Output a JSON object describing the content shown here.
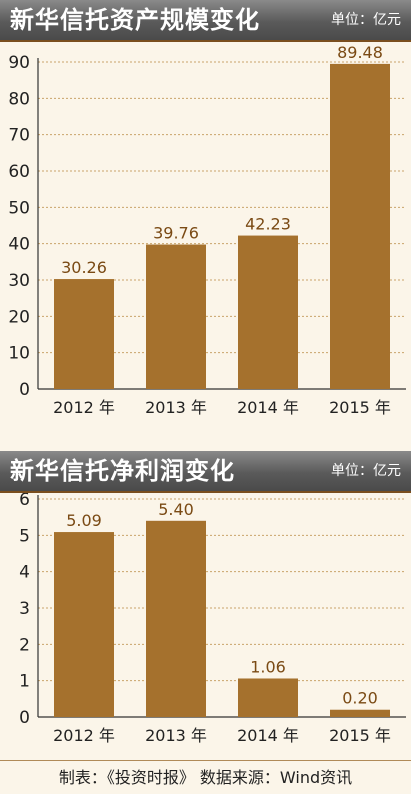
{
  "charts": [
    {
      "title": "新华信托资产规模变化",
      "unit": "单位：亿元"
    },
    {
      "title": "新华信托净利润变化",
      "unit": "单位：亿元"
    }
  ],
  "footer": "制表：《投资时报》  数据来源：Wind资讯",
  "colors": {
    "bar": "#a5712d",
    "label": "#7a4a14",
    "grid": "#c9a46a",
    "banner": "#5e5e5e"
  },
  "chart_data": [
    {
      "type": "bar",
      "title": "新华信托资产规模变化",
      "categories": [
        "2012 年",
        "2013 年",
        "2014 年",
        "2015 年"
      ],
      "values": [
        30.26,
        39.76,
        42.23,
        89.48
      ],
      "value_labels": [
        "30.26",
        "39.76",
        "42.23",
        "89.48"
      ],
      "yticks": [
        0,
        10,
        20,
        30,
        40,
        50,
        60,
        70,
        80,
        90
      ],
      "ylim": [
        0,
        90
      ],
      "xlabel": "",
      "ylabel": "",
      "grid": true
    },
    {
      "type": "bar",
      "title": "新华信托净利润变化",
      "categories": [
        "2012 年",
        "2013 年",
        "2014 年",
        "2015 年"
      ],
      "values": [
        5.09,
        5.4,
        1.06,
        0.2
      ],
      "value_labels": [
        "5.09",
        "5.40",
        "1.06",
        "0.20"
      ],
      "yticks": [
        0,
        1,
        2,
        3,
        4,
        5,
        6
      ],
      "ylim": [
        0,
        6
      ],
      "xlabel": "",
      "ylabel": "",
      "grid": true
    }
  ]
}
